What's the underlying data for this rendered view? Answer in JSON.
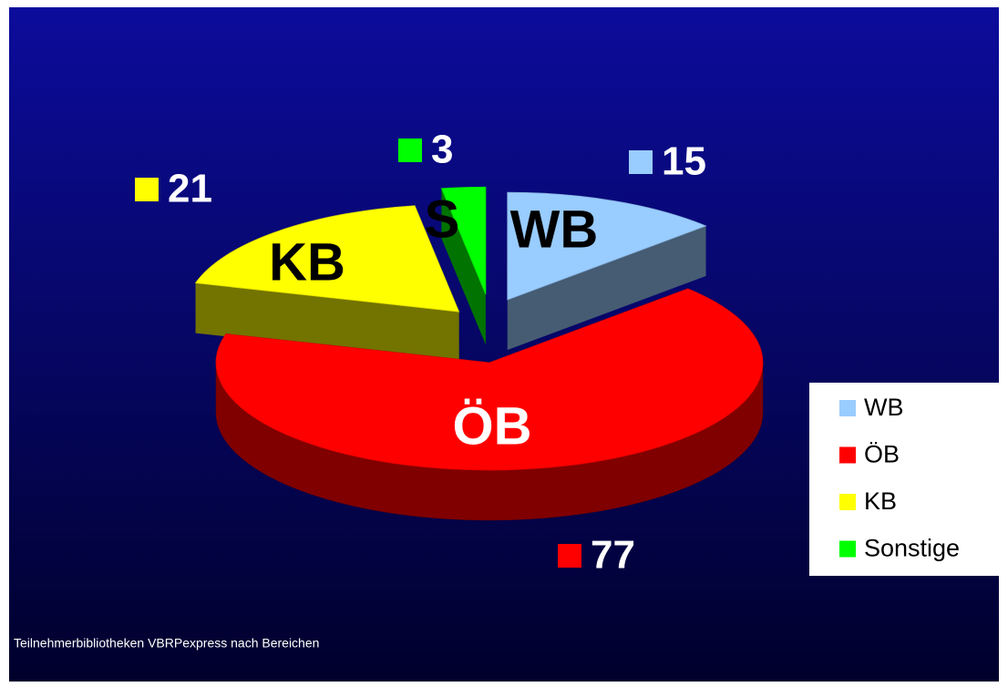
{
  "chart_data": {
    "type": "pie",
    "caption": "Teilnehmerbibliotheken VBRPexpress nach Bereichen",
    "categories": [
      "WB",
      "ÖB",
      "KB",
      "Sonstige"
    ],
    "slice_labels": [
      "WB",
      "ÖB",
      "KB",
      "S"
    ],
    "values": [
      15,
      77,
      21,
      3
    ],
    "colors": [
      "#99ccff",
      "#ff0000",
      "#ffff00",
      "#00ff00"
    ],
    "legend": "right"
  }
}
